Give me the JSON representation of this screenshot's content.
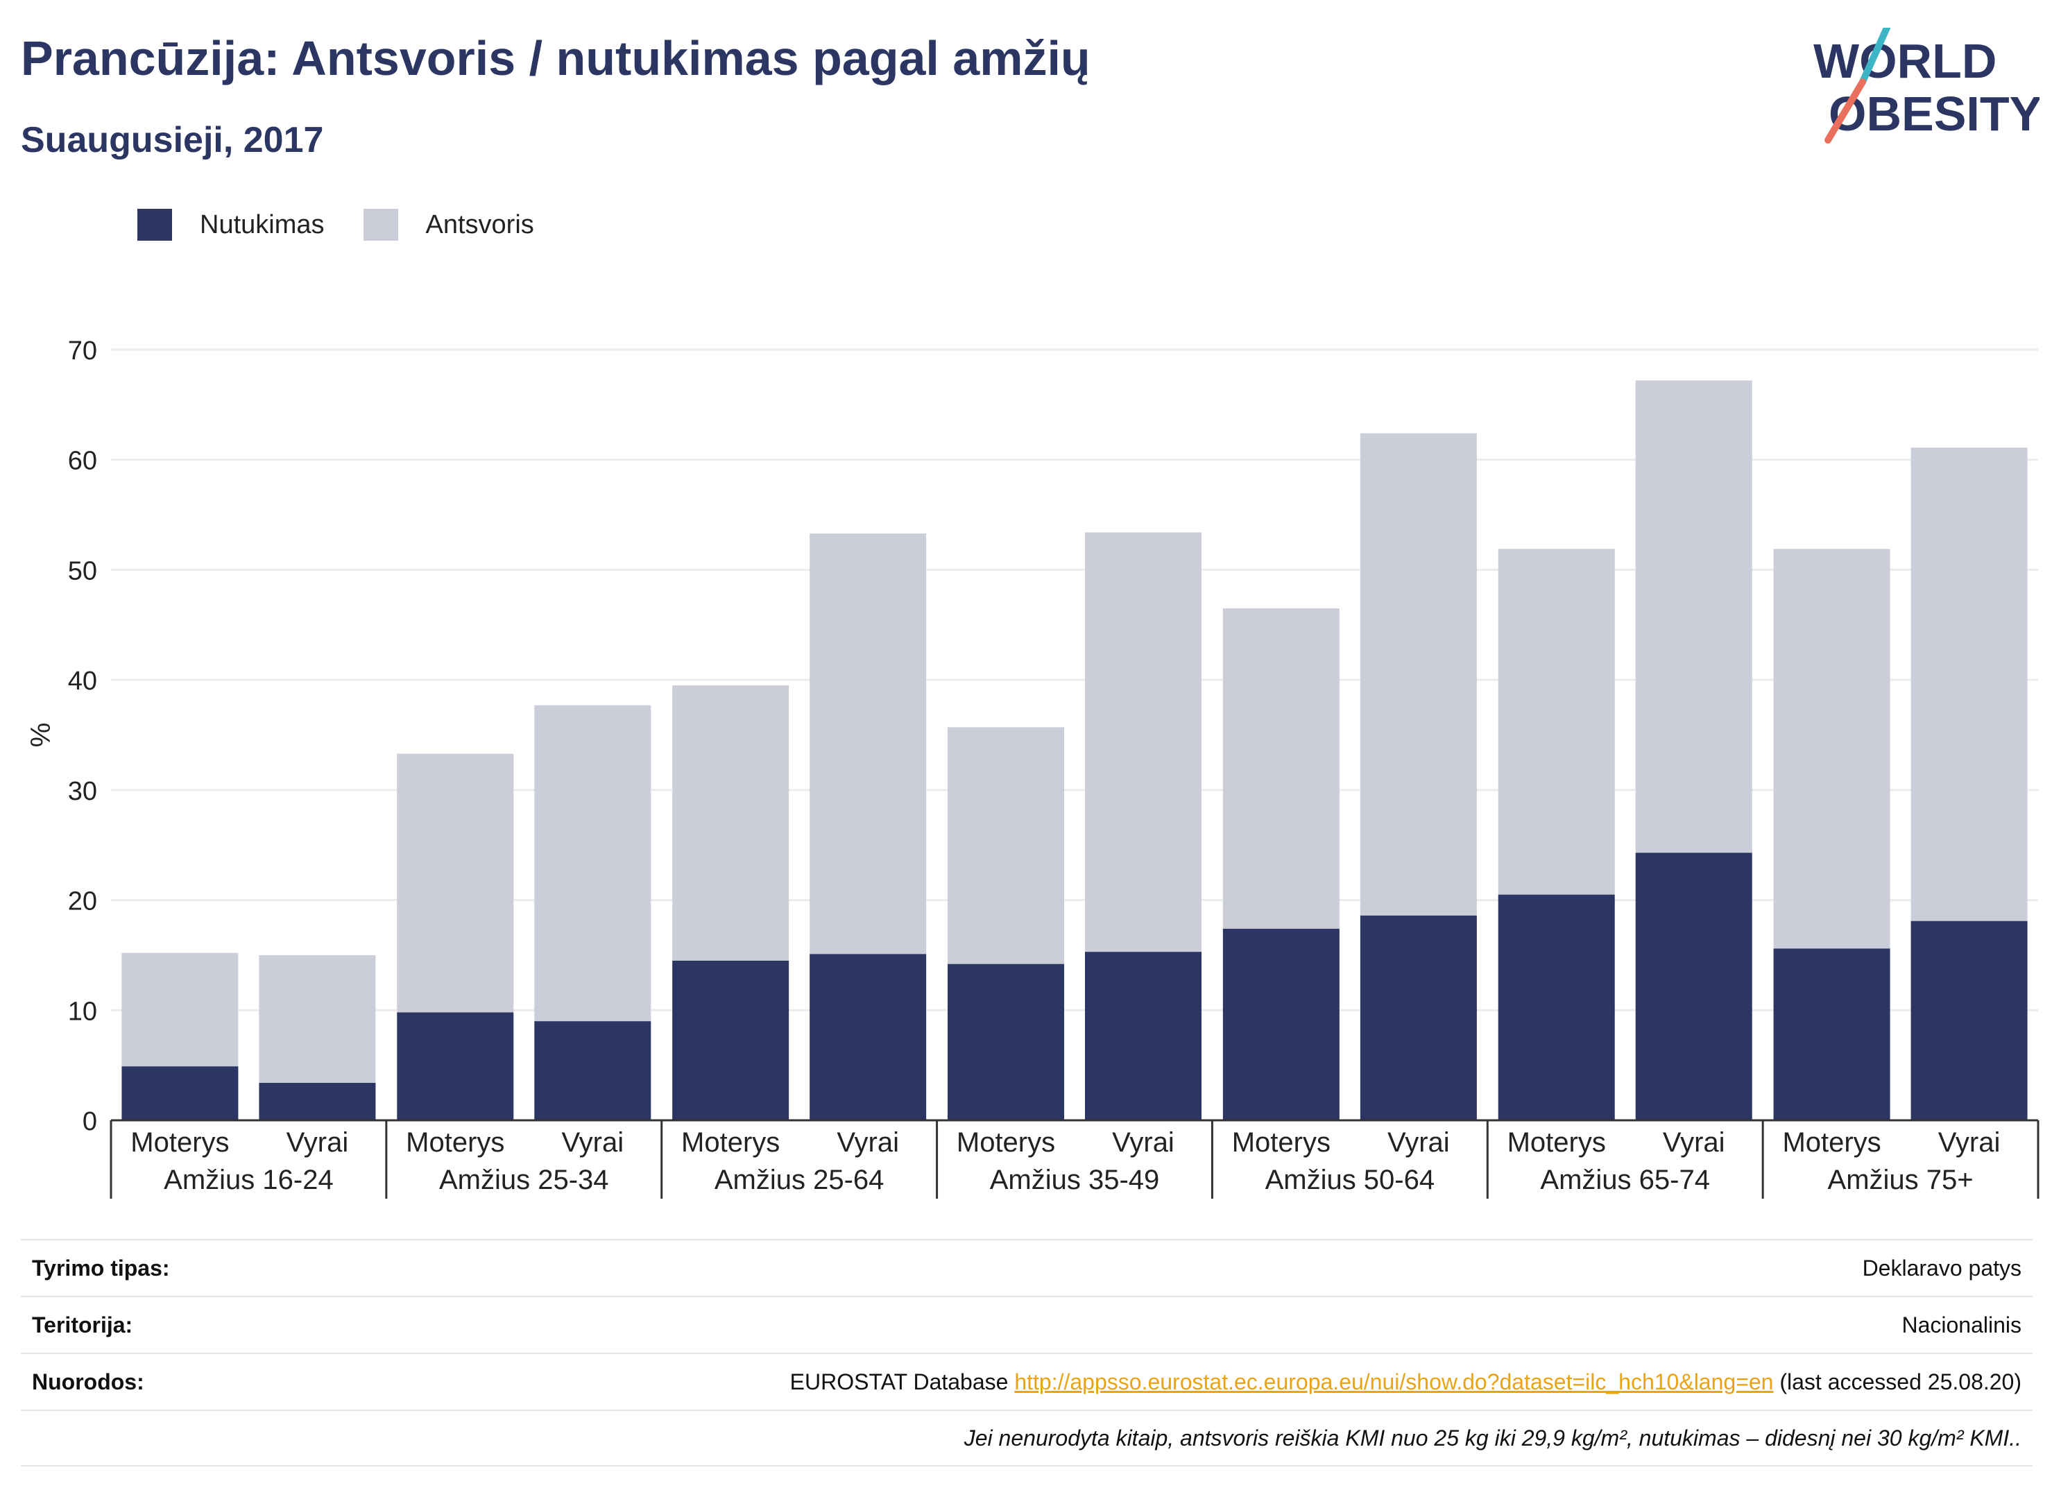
{
  "header": {
    "title": "Prancūzija: Antsvoris / nutukimas pagal amžių",
    "subtitle": "Suaugusieji, 2017",
    "logo_line1": "WORLD",
    "logo_line2": "OBESITY"
  },
  "legend": {
    "obesity": "Nutukimas",
    "overweight": "Antsvoris"
  },
  "colors": {
    "obesity": "#2b3663",
    "overweight": "#cbcdd9",
    "grid": "#ececec",
    "axis": "#333333",
    "link": "#e8a317",
    "logo_teal": "#3db5c4",
    "logo_coral": "#e8705d"
  },
  "chart_data": {
    "type": "bar",
    "stacked": true,
    "ylabel": "%",
    "ylim": [
      0,
      70
    ],
    "yticks": [
      0,
      10,
      20,
      30,
      40,
      50,
      60,
      70
    ],
    "grid": true,
    "legend_position": "top-left",
    "groups": [
      {
        "label": "Amžius 16-24",
        "bars": [
          {
            "label": "Moterys",
            "obesity": 4.9,
            "total": 15.2
          },
          {
            "label": "Vyrai",
            "obesity": 3.4,
            "total": 15.0
          }
        ]
      },
      {
        "label": "Amžius 25-34",
        "bars": [
          {
            "label": "Moterys",
            "obesity": 9.8,
            "total": 33.3
          },
          {
            "label": "Vyrai",
            "obesity": 9.0,
            "total": 37.7
          }
        ]
      },
      {
        "label": "Amžius 25-64",
        "bars": [
          {
            "label": "Moterys",
            "obesity": 14.5,
            "total": 39.5
          },
          {
            "label": "Vyrai",
            "obesity": 15.1,
            "total": 53.3
          }
        ]
      },
      {
        "label": "Amžius 35-49",
        "bars": [
          {
            "label": "Moterys",
            "obesity": 14.2,
            "total": 35.7
          },
          {
            "label": "Vyrai",
            "obesity": 15.3,
            "total": 53.4
          }
        ]
      },
      {
        "label": "Amžius 50-64",
        "bars": [
          {
            "label": "Moterys",
            "obesity": 17.4,
            "total": 46.5
          },
          {
            "label": "Vyrai",
            "obesity": 18.6,
            "total": 62.4
          }
        ]
      },
      {
        "label": "Amžius 65-74",
        "bars": [
          {
            "label": "Moterys",
            "obesity": 20.5,
            "total": 51.9
          },
          {
            "label": "Vyrai",
            "obesity": 24.3,
            "total": 67.2
          }
        ]
      },
      {
        "label": "Amžius 75+",
        "bars": [
          {
            "label": "Moterys",
            "obesity": 15.6,
            "total": 51.9
          },
          {
            "label": "Vyrai",
            "obesity": 18.1,
            "total": 61.1
          }
        ]
      }
    ]
  },
  "info": {
    "survey_type_label": "Tyrimo tipas:",
    "survey_type_value": "Deklaravo patys",
    "territory_label": "Teritorija:",
    "territory_value": "Nacionalinis",
    "references_label": "Nuorodos:",
    "references_prefix": "EUROSTAT Database ",
    "references_link": "http://appsso.eurostat.ec.europa.eu/nui/show.do?dataset=ilc_hch10&lang=en",
    "references_suffix": " (last accessed 25.08.20)",
    "note": "Jei nenurodyta kitaip, antsvoris reiškia KMI nuo 25 kg iki 29,9 kg/m², nutukimas – didesnį nei 30 kg/m² KMI.."
  }
}
